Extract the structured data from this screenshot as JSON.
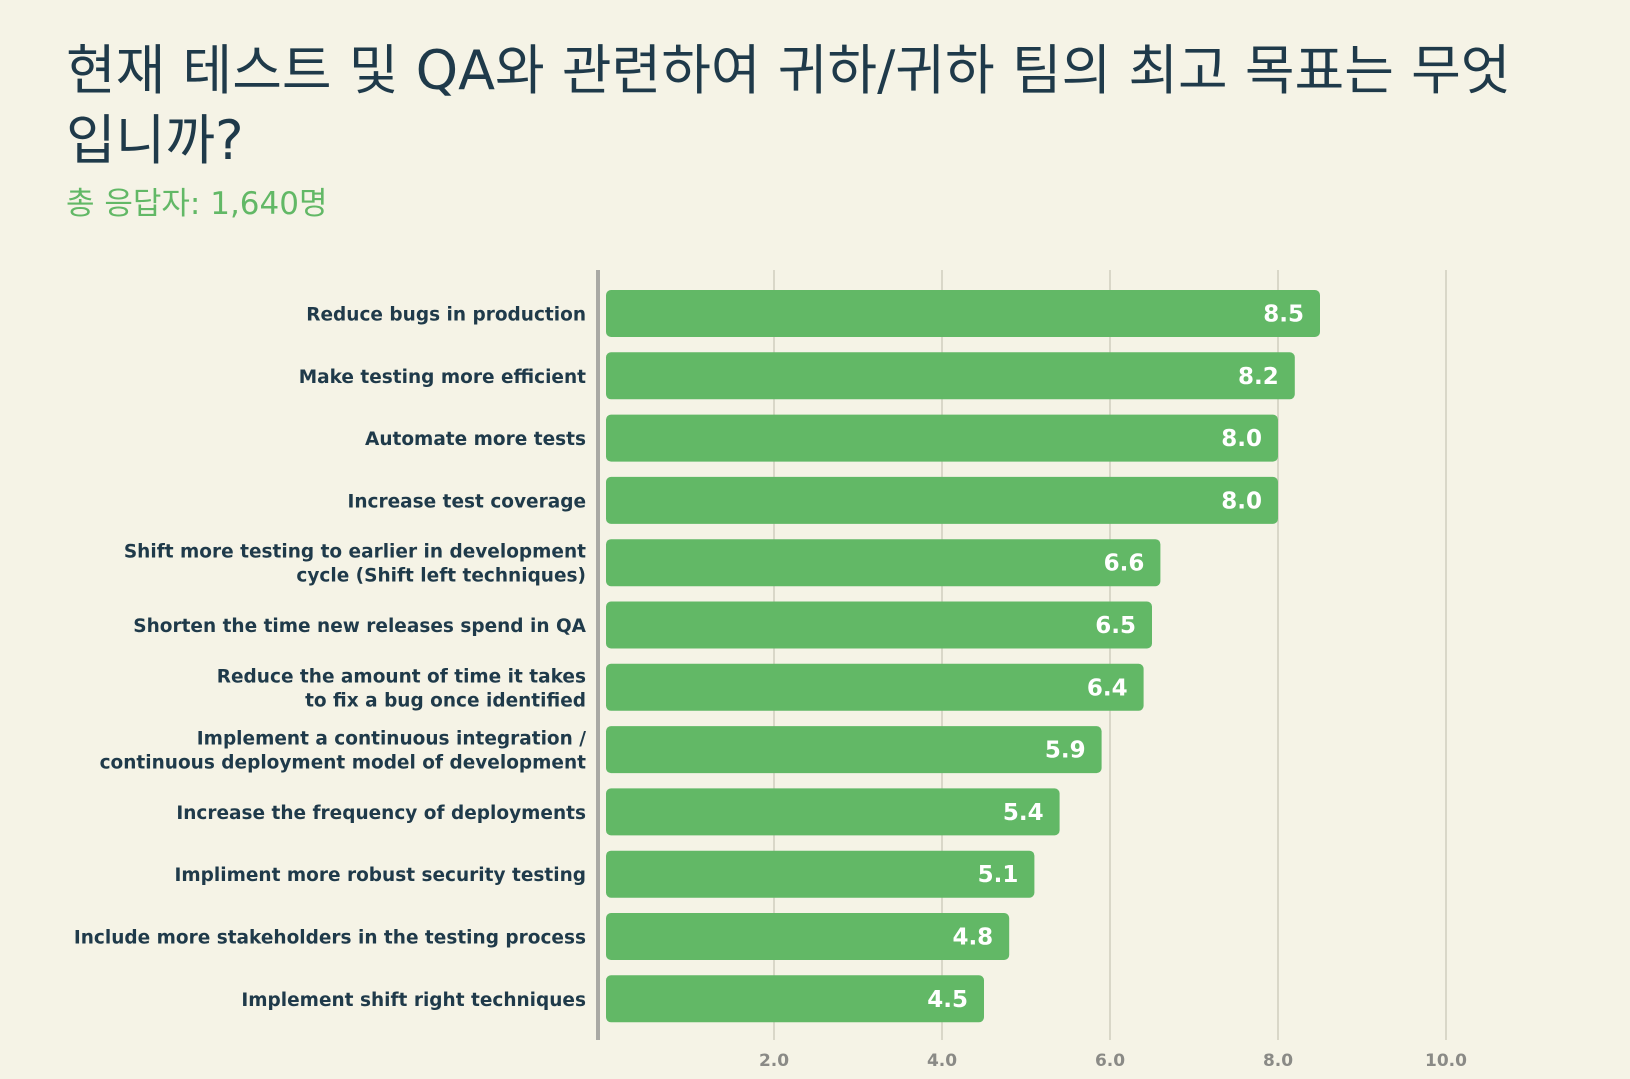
{
  "header": {
    "title": "현재 테스트 및 QA와 관련하여 귀하/귀하 팀의 최고 목표는 무엇입니까?",
    "subtitle": "총 응답자: 1,640명"
  },
  "colors": {
    "bar": "#62b866",
    "gridline": "#d9d7c8",
    "axis": "#a9a9a4",
    "background": "#f5f3e6",
    "title": "#1f3a4a",
    "subtitle": "#62b866"
  },
  "chart_data": {
    "type": "bar",
    "orientation": "horizontal",
    "title": "현재 테스트 및 QA와 관련하여 귀하/귀하 팀의 최고 목표는 무엇입니까?",
    "subtitle": "총 응답자: 1,640명",
    "xlabel": "",
    "ylabel": "",
    "xlim": [
      0,
      10
    ],
    "grid": true,
    "legend": "none",
    "ticks": [
      {
        "value": 2,
        "label": "2.0"
      },
      {
        "value": 4,
        "label": "4.0"
      },
      {
        "value": 6,
        "label": "6.0"
      },
      {
        "value": 8,
        "label": "8.0"
      },
      {
        "value": 10,
        "label": "10.0"
      }
    ],
    "categories": [
      [
        "Reduce bugs in production"
      ],
      [
        "Make testing more efficient"
      ],
      [
        "Automate more tests"
      ],
      [
        "Increase test coverage"
      ],
      [
        "Shift more testing to earlier in development",
        "cycle (Shift left techniques)"
      ],
      [
        "Shorten the time new releases spend in QA"
      ],
      [
        "Reduce the amount of time it takes",
        "to fix a bug once identified"
      ],
      [
        "Implement a continuous integration /",
        "continuous deployment model of development"
      ],
      [
        "Increase the frequency of deployments"
      ],
      [
        "Impliment more robust security testing"
      ],
      [
        "Include more stakeholders in the testing process"
      ],
      [
        "Implement shift right techniques"
      ]
    ],
    "values": [
      8.5,
      8.2,
      8.0,
      8.0,
      6.6,
      6.5,
      6.4,
      5.9,
      5.4,
      5.1,
      4.8,
      4.5
    ],
    "value_labels": [
      "8.5",
      "8.2",
      "8.0",
      "8.0",
      "6.6",
      "6.5",
      "6.4",
      "5.9",
      "5.4",
      "5.1",
      "4.8",
      "4.5"
    ]
  }
}
